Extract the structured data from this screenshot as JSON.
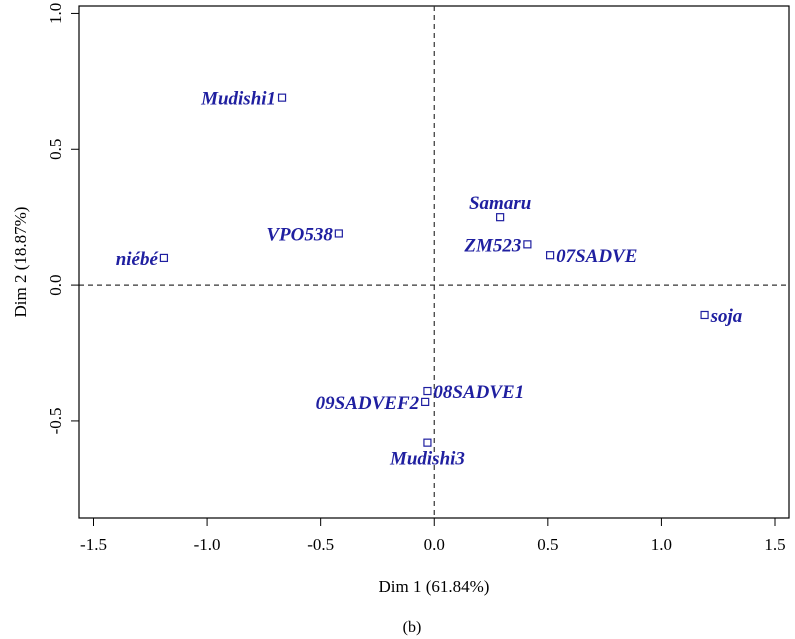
{
  "chart_data": {
    "type": "scatter",
    "xlabel": "Dim 1 (61.84%)",
    "ylabel": "Dim 2 (18.87%)",
    "caption": "(b)",
    "xlim": [
      -1.5,
      1.5
    ],
    "ylim": [
      -0.85,
      1.02
    ],
    "x_ticks": [
      "-1.5",
      "-1.0",
      "-0.5",
      "0.0",
      "0.5",
      "1.0",
      "1.5"
    ],
    "y_ticks": [
      "-0.5",
      "0.0",
      "0.5",
      "1.0"
    ],
    "reference_lines": {
      "x": 0,
      "y": 0,
      "style": "dashed"
    },
    "grid": false,
    "color": "#1f1fa0",
    "points": [
      {
        "label": "Mudishi1",
        "x": -0.67,
        "y": 0.69,
        "anchor": "left"
      },
      {
        "label": "VPO538",
        "x": -0.42,
        "y": 0.19,
        "anchor": "left"
      },
      {
        "label": "niébé",
        "x": -1.19,
        "y": 0.1,
        "anchor": "left"
      },
      {
        "label": "Samaru",
        "x": 0.29,
        "y": 0.25,
        "anchor": "above"
      },
      {
        "label": "ZM523",
        "x": 0.41,
        "y": 0.15,
        "anchor": "left"
      },
      {
        "label": "07SADVE",
        "x": 0.51,
        "y": 0.11,
        "anchor": "right"
      },
      {
        "label": "soja",
        "x": 1.19,
        "y": -0.11,
        "anchor": "right"
      },
      {
        "label": "08SADVE1",
        "x": -0.03,
        "y": -0.39,
        "anchor": "right"
      },
      {
        "label": "09SADVEF2",
        "x": -0.04,
        "y": -0.43,
        "anchor": "left"
      },
      {
        "label": "Mudishi3",
        "x": -0.03,
        "y": -0.58,
        "anchor": "below"
      }
    ]
  }
}
